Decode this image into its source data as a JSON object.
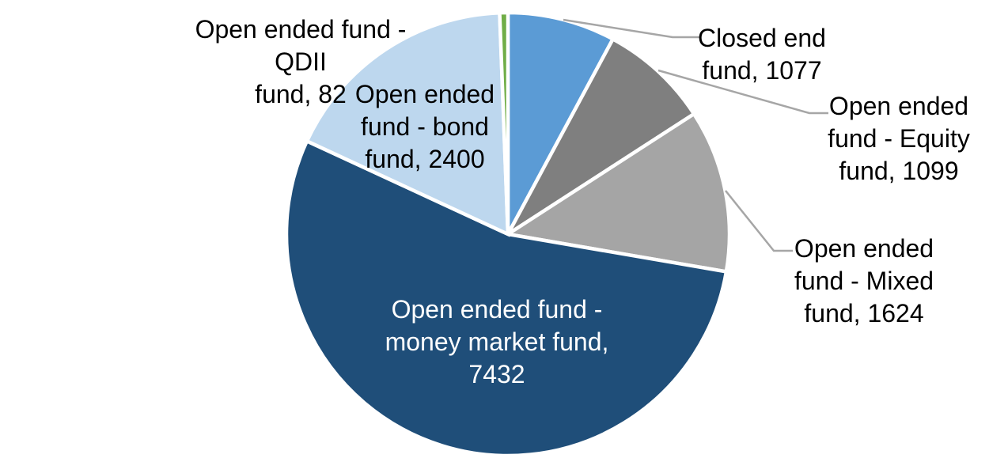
{
  "chart_data": {
    "type": "pie",
    "title": "",
    "start_angle_deg": 0,
    "direction": "clockwise",
    "legend": "none",
    "slice_border_color": "#FFFFFF",
    "leader_line_color": "#A6A6A6",
    "background_color": "#FFFFFF",
    "slices": [
      {
        "id": "closed-end-fund",
        "label": "Closed end fund",
        "value": 1077,
        "color": "#5B9BD5",
        "label_color": "#000000",
        "label_lines": [
          "Closed end",
          "fund, 1077"
        ],
        "label_position": "outside",
        "leader_line": true
      },
      {
        "id": "open-ended-fund-equity-fund",
        "label": "Open ended fund - Equity fund",
        "value": 1099,
        "color": "#7F7F7F",
        "label_color": "#000000",
        "label_lines": [
          "Open ended",
          "fund - Equity",
          "fund, 1099"
        ],
        "label_position": "outside",
        "leader_line": true
      },
      {
        "id": "open-ended-fund-mixed-fund",
        "label": "Open ended fund - Mixed fund",
        "value": 1624,
        "color": "#A5A5A5",
        "label_color": "#000000",
        "label_lines": [
          "Open ended",
          "fund - Mixed",
          "fund, 1624"
        ],
        "label_position": "outside",
        "leader_line": true
      },
      {
        "id": "open-ended-fund-money-market-fund",
        "label": "Open ended fund - money market fund",
        "value": 7432,
        "color": "#1F4E79",
        "label_color": "#FFFFFF",
        "label_lines": [
          "Open ended fund -",
          "money market fund,",
          "7432"
        ],
        "label_position": "inside",
        "leader_line": false
      },
      {
        "id": "open-ended-fund-bond-fund",
        "label": "Open ended fund - bond fund",
        "value": 2400,
        "color": "#BDD7EE",
        "label_color": "#000000",
        "label_lines": [
          "Open ended",
          "fund - bond",
          "fund, 2400"
        ],
        "label_position": "outside",
        "leader_line": false
      },
      {
        "id": "open-ended-fund-qdii-fund",
        "label": "Open ended fund - QDII fund",
        "value": 82,
        "color": "#70AD47",
        "label_color": "#000000",
        "label_lines": [
          "Open ended fund - QDII",
          "fund, 82"
        ],
        "label_position": "outside",
        "leader_line": false
      }
    ]
  }
}
